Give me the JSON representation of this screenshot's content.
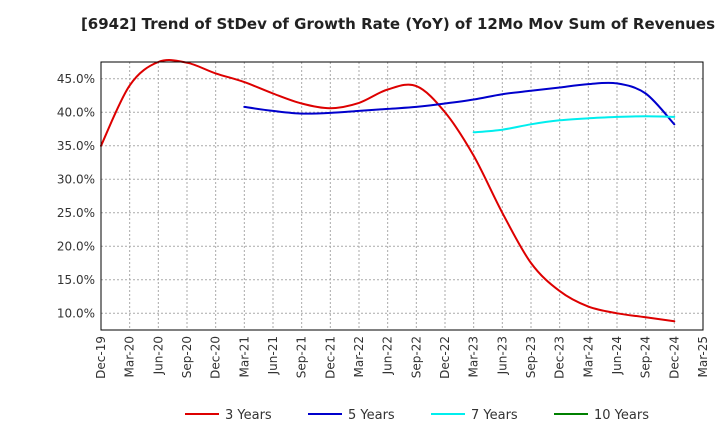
{
  "chart_data": {
    "type": "line",
    "title": "[6942]  Trend of StDev of Growth Rate (YoY) of 12Mo Mov Sum of Revenues",
    "xlabel": "",
    "ylabel": "",
    "x_ticks": [
      "Dec-19",
      "Mar-20",
      "Jun-20",
      "Sep-20",
      "Dec-20",
      "Mar-21",
      "Jun-21",
      "Sep-21",
      "Dec-21",
      "Mar-22",
      "Jun-22",
      "Sep-22",
      "Dec-22",
      "Mar-23",
      "Jun-23",
      "Sep-23",
      "Dec-23",
      "Mar-24",
      "Jun-24",
      "Sep-24",
      "Dec-24",
      "Mar-25"
    ],
    "y_ticks": [
      "10.0%",
      "15.0%",
      "20.0%",
      "25.0%",
      "30.0%",
      "35.0%",
      "40.0%",
      "45.0%"
    ],
    "y_tick_values": [
      10,
      15,
      20,
      25,
      30,
      35,
      40,
      45
    ],
    "ylim": [
      7.5,
      47.5
    ],
    "grid": true,
    "legend_position": "bottom",
    "series": [
      {
        "name": "3 Years",
        "color": "#dd0000",
        "points": [
          [
            0,
            35.0
          ],
          [
            1,
            44.0
          ],
          [
            2,
            47.5
          ],
          [
            3,
            47.4
          ],
          [
            4,
            45.8
          ],
          [
            5,
            44.5
          ],
          [
            6,
            42.8
          ],
          [
            7,
            41.3
          ],
          [
            8,
            40.6
          ],
          [
            9,
            41.4
          ],
          [
            10,
            43.4
          ],
          [
            11,
            43.9
          ],
          [
            12,
            40.0
          ],
          [
            13,
            33.5
          ],
          [
            14,
            25.0
          ],
          [
            15,
            17.5
          ],
          [
            16,
            13.3
          ],
          [
            17,
            11.0
          ],
          [
            18,
            10.0
          ],
          [
            19,
            9.4
          ],
          [
            20,
            8.8
          ]
        ]
      },
      {
        "name": "5 Years",
        "color": "#0000cc",
        "points": [
          [
            5,
            40.8
          ],
          [
            6,
            40.2
          ],
          [
            7,
            39.8
          ],
          [
            8,
            39.9
          ],
          [
            9,
            40.2
          ],
          [
            10,
            40.5
          ],
          [
            11,
            40.8
          ],
          [
            12,
            41.3
          ],
          [
            13,
            41.9
          ],
          [
            14,
            42.7
          ],
          [
            15,
            43.2
          ],
          [
            16,
            43.7
          ],
          [
            17,
            44.2
          ],
          [
            18,
            44.3
          ],
          [
            19,
            42.8
          ],
          [
            20,
            38.2
          ]
        ]
      },
      {
        "name": "7 Years",
        "color": "#00eeee",
        "points": [
          [
            13,
            37.0
          ],
          [
            14,
            37.4
          ],
          [
            15,
            38.2
          ],
          [
            16,
            38.8
          ],
          [
            17,
            39.1
          ],
          [
            18,
            39.3
          ],
          [
            19,
            39.4
          ],
          [
            20,
            39.3
          ]
        ]
      },
      {
        "name": "10 Years",
        "color": "#008000",
        "points": []
      }
    ]
  }
}
